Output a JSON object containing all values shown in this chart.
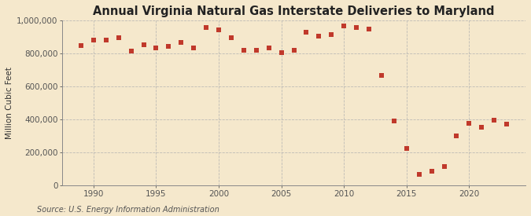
{
  "title": "Annual Virginia Natural Gas Interstate Deliveries to Maryland",
  "ylabel": "Million Cubic Feet",
  "source": "Source: U.S. Energy Information Administration",
  "background_color": "#f5e8cc",
  "plot_background_color": "#f5e8cc",
  "marker_color": "#c0392b",
  "years": [
    1989,
    1990,
    1991,
    1992,
    1993,
    1994,
    1995,
    1996,
    1997,
    1998,
    1999,
    2000,
    2001,
    2002,
    2003,
    2004,
    2005,
    2006,
    2007,
    2008,
    2009,
    2010,
    2011,
    2012,
    2013,
    2014,
    2015,
    2016,
    2017,
    2018,
    2019,
    2020,
    2021,
    2022,
    2023
  ],
  "values": [
    845000,
    880000,
    882000,
    893000,
    812000,
    852000,
    835000,
    842000,
    868000,
    835000,
    958000,
    942000,
    893000,
    818000,
    820000,
    833000,
    802000,
    820000,
    930000,
    905000,
    912000,
    968000,
    958000,
    948000,
    665000,
    388000,
    225000,
    65000,
    88000,
    115000,
    300000,
    375000,
    352000,
    393000,
    370000
  ],
  "ylim": [
    0,
    1000000
  ],
  "yticks": [
    0,
    200000,
    400000,
    600000,
    800000,
    1000000
  ],
  "ytick_labels": [
    "0",
    "200,000",
    "400,000",
    "600,000",
    "800,000",
    "1,000,000"
  ],
  "xticks": [
    1990,
    1995,
    2000,
    2005,
    2010,
    2015,
    2020
  ],
  "xlim": [
    1987.5,
    2024.5
  ],
  "grid_color": "#b0b0b0",
  "title_fontsize": 10.5,
  "label_fontsize": 7.5,
  "tick_fontsize": 7.5,
  "source_fontsize": 7.0
}
